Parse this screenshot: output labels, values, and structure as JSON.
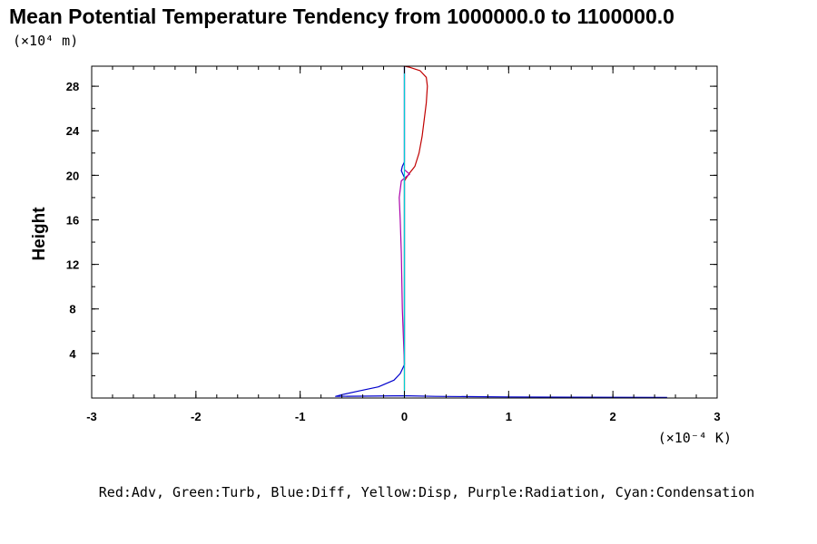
{
  "chart_data": {
    "type": "line",
    "title": "Mean Potential Temperature Tendency from 1000000.0 to 1100000.0",
    "ylabel": "Height",
    "y_unit": "(×10⁴ m)",
    "x_unit": "(×10⁻⁴ K)",
    "legend_note": "Red:Adv, Green:Turb, Blue:Diff, Yellow:Disp, Purple:Radiation, Cyan:Condensation",
    "xlim": [
      -3,
      3
    ],
    "ylim": [
      0,
      29.8
    ],
    "x_ticks": [
      -3,
      -2,
      -1,
      0,
      1,
      2,
      3
    ],
    "y_ticks": [
      4,
      8,
      12,
      16,
      20,
      24,
      28
    ],
    "grid": false,
    "series": [
      {
        "name": "Red:Adv",
        "color": "#c00000",
        "points": [
          [
            0.0,
            0.7
          ],
          [
            0.0,
            19.5
          ],
          [
            0.02,
            19.8
          ],
          [
            0.05,
            20.2
          ],
          [
            0.1,
            20.8
          ],
          [
            0.14,
            22.0
          ],
          [
            0.17,
            23.5
          ],
          [
            0.19,
            25.0
          ],
          [
            0.21,
            26.5
          ],
          [
            0.22,
            28.0
          ],
          [
            0.21,
            28.8
          ],
          [
            0.15,
            29.4
          ],
          [
            0.05,
            29.7
          ],
          [
            0.0,
            29.8
          ]
        ]
      },
      {
        "name": "Blue:Diff",
        "color": "#0000cc",
        "points": [
          [
            2.52,
            0.05
          ],
          [
            1.0,
            0.1
          ],
          [
            0.3,
            0.15
          ],
          [
            0.0,
            0.2
          ],
          [
            -0.66,
            0.15
          ],
          [
            -0.6,
            0.3
          ],
          [
            -0.45,
            0.6
          ],
          [
            -0.25,
            1.0
          ],
          [
            -0.1,
            1.6
          ],
          [
            -0.04,
            2.2
          ],
          [
            0.0,
            3.0
          ],
          [
            0.0,
            19.8
          ],
          [
            -0.03,
            20.4
          ],
          [
            -0.02,
            20.8
          ],
          [
            0.0,
            21.2
          ],
          [
            0.0,
            29.8
          ]
        ]
      },
      {
        "name": "Purple:Radiation",
        "color": "#aa00aa",
        "points": [
          [
            0.0,
            3.0
          ],
          [
            -0.02,
            8.0
          ],
          [
            -0.03,
            13.0
          ],
          [
            -0.04,
            16.0
          ],
          [
            -0.05,
            18.0
          ],
          [
            -0.03,
            19.5
          ],
          [
            0.02,
            19.9
          ],
          [
            0.05,
            20.1
          ],
          [
            0.0,
            20.5
          ],
          [
            0.0,
            29.8
          ]
        ]
      },
      {
        "name": "Cyan:Condensation",
        "color": "#00d0d0",
        "points": [
          [
            0.0,
            0.0
          ],
          [
            0.0,
            29.8
          ]
        ]
      }
    ]
  }
}
